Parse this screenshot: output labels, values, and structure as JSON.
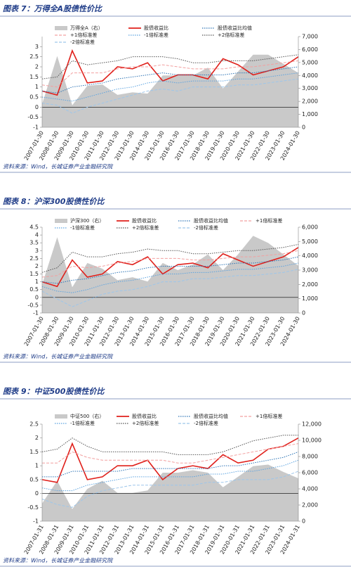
{
  "chart_data": [
    {
      "type": "line",
      "title": "图表 7：万得全A股债性价比",
      "note": "资料来源：Wind，长城证券产业金融研究院",
      "categories": [
        "2007-01-30",
        "2008-01-30",
        "2009-01-30",
        "2010-01-30",
        "2011-01-30",
        "2012-01-30",
        "2013-01-30",
        "2014-01-30",
        "2015-01-30",
        "2016-01-30",
        "2017-01-30",
        "2018-01-30",
        "2019-01-30",
        "2020-01-30",
        "2021-01-30",
        "2022-01-30",
        "2023-01-30",
        "2024-01-30"
      ],
      "ylim": [
        -1,
        3.5
      ],
      "yticks": [
        -1,
        -0.5,
        0,
        0.5,
        1,
        1.5,
        2,
        2.5,
        3
      ],
      "y2lim": [
        0,
        7000
      ],
      "y2ticks": [
        0,
        {
          "value": 1000,
          "label": "1,000"
        },
        {
          "value": 2000,
          "label": "2,000"
        },
        {
          "value": 3000,
          "label": "3,000"
        },
        {
          "value": 4000,
          "label": "4,000"
        },
        {
          "value": 5000,
          "label": "5,000"
        },
        {
          "value": 6000,
          "label": "6,000"
        },
        {
          "value": 7000,
          "label": "7,000"
        }
      ],
      "series": [
        {
          "name": "万得全A（右）",
          "color": "#c9c9c9",
          "axis": "y2",
          "kind": "area",
          "values": [
            1800,
            5500,
            1700,
            3200,
            3300,
            2500,
            2700,
            2600,
            4000,
            4000,
            4000,
            4600,
            3000,
            4300,
            5600,
            5600,
            4900,
            4200
          ]
        },
        {
          "name": "股债收益比",
          "color": "#e0201b",
          "dash": "solid",
          "values": [
            0.8,
            0.6,
            2.8,
            1.2,
            1.3,
            2.0,
            1.9,
            2.2,
            1.3,
            1.6,
            1.6,
            1.4,
            2.4,
            2.1,
            1.6,
            1.8,
            2.0,
            2.5
          ]
        },
        {
          "name": "股债收益比均值",
          "color": "#2e75b6",
          "dash": "dotted",
          "values": [
            0.8,
            0.7,
            1.0,
            1.1,
            1.2,
            1.4,
            1.5,
            1.6,
            1.7,
            1.6,
            1.6,
            1.6,
            1.6,
            1.7,
            1.7,
            1.8,
            1.9,
            2.0
          ]
        },
        {
          "name": "+1倍标准差",
          "color": "#f2a0a0",
          "dash": "dashed",
          "values": [
            1.1,
            1.0,
            1.7,
            1.7,
            1.7,
            1.9,
            2.0,
            2.0,
            2.1,
            2.0,
            1.9,
            1.9,
            1.9,
            2.0,
            2.0,
            2.1,
            2.2,
            2.3
          ]
        },
        {
          "name": "-1倍标准差",
          "color": "#5ba3e0",
          "dash": "dotted",
          "values": [
            0.5,
            0.4,
            0.3,
            0.5,
            0.7,
            0.9,
            1.0,
            1.2,
            1.3,
            1.2,
            1.3,
            1.3,
            1.3,
            1.4,
            1.4,
            1.5,
            1.6,
            1.7
          ]
        },
        {
          "name": "+2倍标准差",
          "color": "#555555",
          "dash": "dotted",
          "values": [
            1.4,
            1.5,
            2.3,
            2.1,
            2.2,
            2.3,
            2.5,
            2.5,
            2.5,
            2.4,
            2.2,
            2.2,
            2.3,
            2.3,
            2.3,
            2.4,
            2.5,
            2.6
          ]
        },
        {
          "name": "-2倍标准差",
          "color": "#9dc6ea",
          "dash": "dashed",
          "values": [
            0.2,
            0.1,
            -0.3,
            0.0,
            0.2,
            0.4,
            0.6,
            0.8,
            0.9,
            0.8,
            1.0,
            1.0,
            1.0,
            1.1,
            1.1,
            1.2,
            1.3,
            1.4
          ]
        }
      ]
    },
    {
      "type": "line",
      "title": "图表 8：沪深300股债性价比",
      "note": "资料来源：Wind，长城证券产业金融研究院",
      "categories": [
        "2007-01-30",
        "2008-01-30",
        "2009-01-30",
        "2010-01-30",
        "2011-01-30",
        "2012-01-30",
        "2013-01-30",
        "2014-01-30",
        "2015-01-30",
        "2016-01-30",
        "2017-01-30",
        "2018-01-30",
        "2019-01-30",
        "2020-01-30",
        "2021-01-30",
        "2022-01-30",
        "2023-01-30",
        "2024-01-30"
      ],
      "ylim": [
        -1,
        4.5
      ],
      "yticks": [
        -1,
        -0.5,
        0,
        0.5,
        1,
        1.5,
        2,
        2.5,
        3,
        3.5,
        4,
        4.5
      ],
      "y2lim": [
        0,
        6000
      ],
      "y2ticks": [
        0,
        {
          "value": 1000,
          "label": "1,000"
        },
        {
          "value": 2000,
          "label": "2,000"
        },
        {
          "value": 3000,
          "label": "3,000"
        },
        {
          "value": 4000,
          "label": "4,000"
        },
        {
          "value": 5000,
          "label": "5,000"
        },
        {
          "value": 6000,
          "label": "6,000"
        }
      ],
      "series": [
        {
          "name": "沪深300（右）",
          "color": "#c9c9c9",
          "axis": "y2",
          "kind": "area",
          "values": [
            2000,
            5300,
            1800,
            3500,
            3100,
            2300,
            2500,
            2200,
            3500,
            3000,
            3400,
            4100,
            3000,
            4100,
            5400,
            4900,
            4100,
            3300
          ]
        },
        {
          "name": "股债收益比",
          "color": "#e0201b",
          "dash": "solid",
          "values": [
            1.0,
            0.7,
            2.4,
            1.3,
            1.5,
            2.3,
            2.1,
            2.6,
            1.5,
            2.1,
            2.2,
            1.9,
            2.8,
            2.4,
            2.0,
            2.3,
            2.6,
            3.2
          ]
        },
        {
          "name": "股债收益比均值",
          "color": "#2e75b6",
          "dash": "dotted",
          "values": [
            1.0,
            0.9,
            1.1,
            1.2,
            1.4,
            1.6,
            1.7,
            1.9,
            2.0,
            2.0,
            2.0,
            2.0,
            2.1,
            2.2,
            2.2,
            2.3,
            2.4,
            2.6
          ]
        },
        {
          "name": "+1倍标准差",
          "color": "#f2a0a0",
          "dash": "dashed",
          "values": [
            1.3,
            1.4,
            2.0,
            1.9,
            2.0,
            2.2,
            2.3,
            2.5,
            2.5,
            2.5,
            2.4,
            2.4,
            2.5,
            2.6,
            2.6,
            2.7,
            2.8,
            3.0
          ]
        },
        {
          "name": "-1倍标准差",
          "color": "#5ba3e0",
          "dash": "dotted",
          "values": [
            0.7,
            0.4,
            0.3,
            0.5,
            0.8,
            1.0,
            1.1,
            1.3,
            1.5,
            1.5,
            1.6,
            1.6,
            1.7,
            1.8,
            1.8,
            1.9,
            2.0,
            2.2
          ]
        },
        {
          "name": "+2倍标准差",
          "color": "#555555",
          "dash": "dotted",
          "values": [
            1.6,
            1.9,
            2.9,
            2.6,
            2.6,
            2.8,
            2.9,
            3.1,
            3.0,
            3.0,
            2.8,
            2.8,
            2.9,
            3.0,
            3.0,
            3.1,
            3.2,
            3.4
          ]
        },
        {
          "name": "-2倍标准差",
          "color": "#9dc6ea",
          "dash": "dashed",
          "values": [
            0.4,
            -0.1,
            -0.6,
            -0.2,
            0.2,
            0.4,
            0.5,
            0.7,
            1.0,
            1.0,
            1.2,
            1.2,
            1.3,
            1.4,
            1.4,
            1.5,
            1.6,
            1.8
          ]
        }
      ]
    },
    {
      "type": "line",
      "title": "图表 9：中证500股债性价比",
      "note": "资料来源：Wind，长城证券产业金融研究院",
      "categories": [
        "2007-01-31",
        "2008-01-31",
        "2009-01-31",
        "2010-01-31",
        "2011-01-31",
        "2012-01-31",
        "2013-01-31",
        "2014-01-31",
        "2015-01-31",
        "2016-01-31",
        "2017-01-31",
        "2018-01-31",
        "2019-01-31",
        "2020-01-31",
        "2021-01-31",
        "2022-01-31",
        "2023-01-31",
        "2024-01-31"
      ],
      "ylim": [
        -1,
        2.5
      ],
      "yticks": [
        -1,
        -0.5,
        0,
        0.5,
        1,
        1.5,
        2,
        2.5
      ],
      "y2lim": [
        0,
        12000
      ],
      "y2ticks": [
        0,
        {
          "value": 2000,
          "label": "2,000"
        },
        {
          "value": 4000,
          "label": "4,000"
        },
        {
          "value": 6000,
          "label": "6,000"
        },
        {
          "value": 8000,
          "label": "8,000"
        },
        {
          "value": 10000,
          "label": "10,000"
        },
        {
          "value": 12000,
          "label": "12,000"
        }
      ],
      "series": [
        {
          "name": "中证500（右）",
          "color": "#c9c9c9",
          "axis": "y2",
          "kind": "area",
          "values": [
            2200,
            5000,
            1500,
            4000,
            5000,
            3500,
            3500,
            3800,
            6000,
            6000,
            6300,
            6000,
            4200,
            5500,
            6800,
            7000,
            6100,
            5300
          ]
        },
        {
          "name": "股债收益比",
          "color": "#e0201b",
          "dash": "solid",
          "values": [
            0.5,
            0.4,
            1.8,
            0.5,
            0.6,
            1.0,
            1.0,
            1.2,
            0.5,
            0.9,
            1.0,
            0.9,
            1.4,
            1.1,
            1.2,
            1.6,
            1.7,
            2.0
          ]
        },
        {
          "name": "股债收益比均值",
          "color": "#2e75b6",
          "dash": "dotted",
          "values": [
            0.6,
            0.6,
            0.8,
            0.8,
            0.8,
            0.8,
            0.9,
            0.9,
            0.9,
            0.9,
            0.9,
            0.9,
            1.0,
            1.0,
            1.1,
            1.2,
            1.3,
            1.5
          ]
        },
        {
          "name": "+1倍标准差",
          "color": "#f2a0a0",
          "dash": "dashed",
          "values": [
            1.1,
            1.1,
            1.5,
            1.3,
            1.2,
            1.2,
            1.2,
            1.2,
            1.2,
            1.1,
            1.1,
            1.2,
            1.3,
            1.4,
            1.5,
            1.6,
            1.7,
            1.8
          ]
        },
        {
          "name": "-1倍标准差",
          "color": "#5ba3e0",
          "dash": "dotted",
          "values": [
            0.2,
            0.1,
            0.1,
            0.3,
            0.4,
            0.5,
            0.6,
            0.6,
            0.6,
            0.6,
            0.6,
            0.7,
            0.7,
            0.8,
            0.8,
            0.9,
            1.0,
            1.2
          ]
        },
        {
          "name": "+2倍标准差",
          "color": "#555555",
          "dash": "dotted",
          "values": [
            1.5,
            1.6,
            2.0,
            1.7,
            1.5,
            1.5,
            1.5,
            1.5,
            1.5,
            1.4,
            1.4,
            1.4,
            1.5,
            1.7,
            1.9,
            2.0,
            2.1,
            2.1
          ]
        },
        {
          "name": "-2倍标准差",
          "color": "#9dc6ea",
          "dash": "dashed",
          "values": [
            -0.2,
            -0.4,
            -0.5,
            -0.1,
            0.1,
            0.2,
            0.3,
            0.3,
            0.3,
            0.3,
            0.3,
            0.4,
            0.4,
            0.5,
            0.5,
            0.5,
            0.6,
            0.8
          ]
        }
      ]
    }
  ]
}
